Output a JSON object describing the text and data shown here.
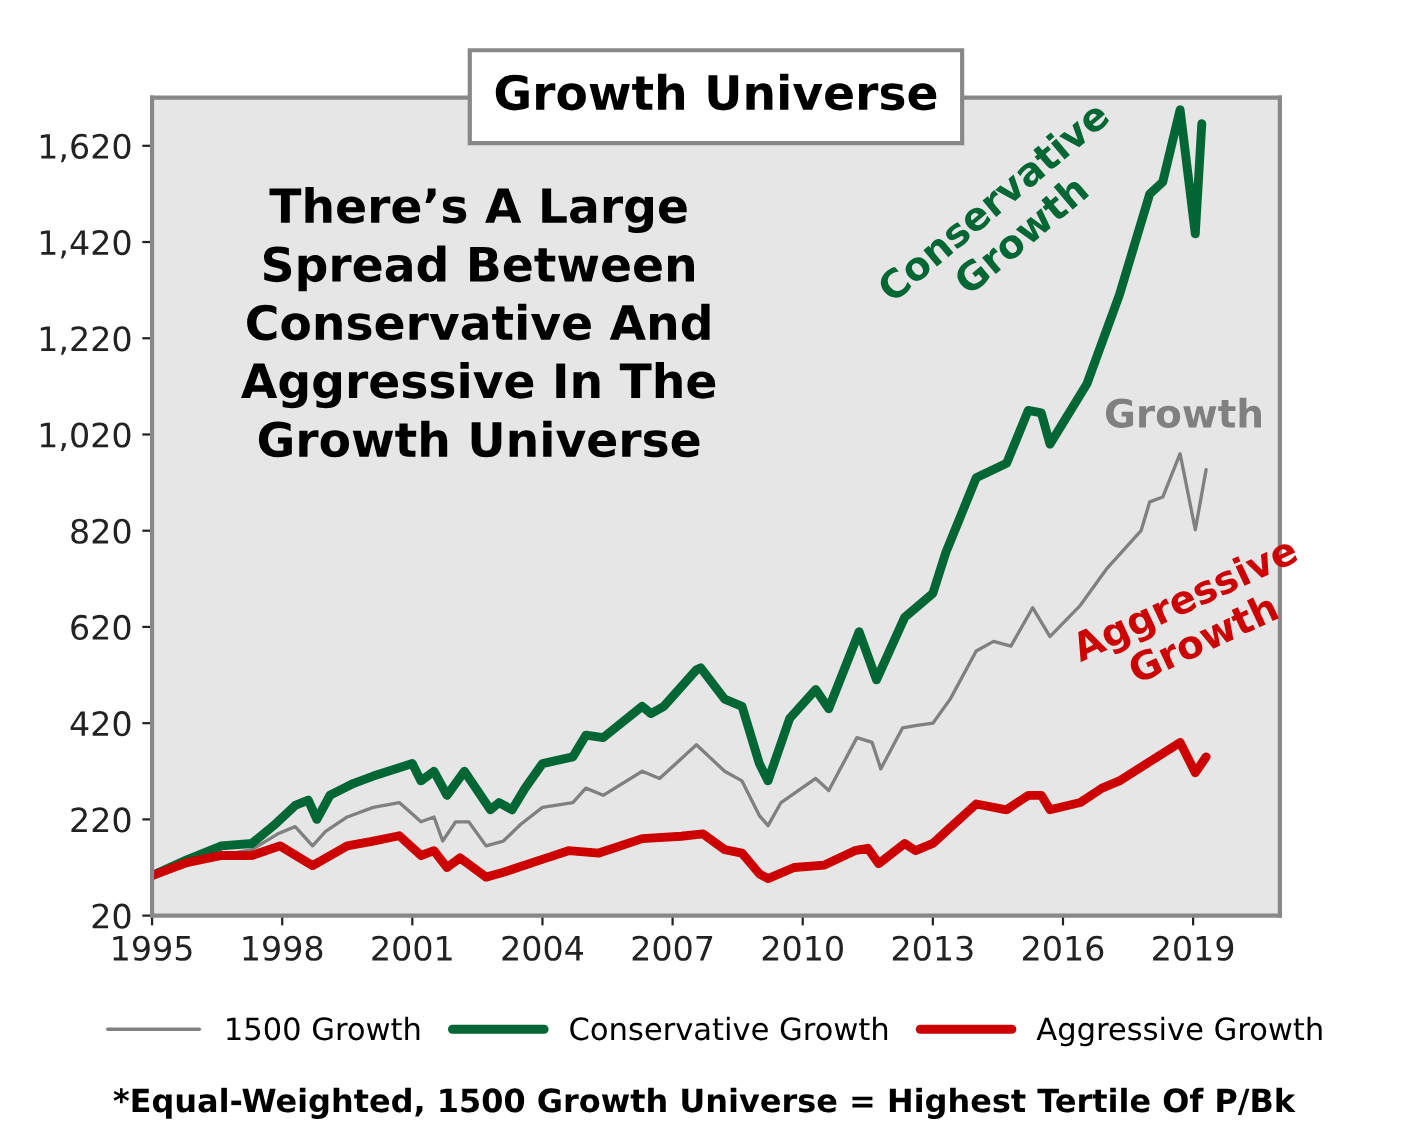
{
  "chart_data": {
    "type": "line",
    "title": "Growth Universe",
    "xlim": [
      1995,
      2021
    ],
    "xticks": [
      1995,
      1998,
      2001,
      2004,
      2007,
      2010,
      2013,
      2016,
      2019
    ],
    "ylim": [
      20,
      1720
    ],
    "yticks": [
      20,
      220,
      420,
      620,
      820,
      {
        "value": 1020,
        "label": "1,020"
      },
      {
        "value": 1220,
        "label": "1,220"
      },
      {
        "value": 1420,
        "label": "1,420"
      },
      {
        "value": 1620,
        "label": "1,620"
      }
    ],
    "grid": false,
    "legend": "bottom",
    "line_style": "solid",
    "marker": "none",
    "series": [
      {
        "name": "1500 Growth",
        "color": "#808080",
        "x": [
          1995,
          1996.6,
          1997.3,
          1997.9,
          1998.3,
          1998.7,
          1999.0,
          1999.5,
          2000.1,
          2000.7,
          2001.2,
          2001.5,
          2001.7,
          2002.0,
          2002.3,
          2002.7,
          2003.1,
          2003.5,
          2004.0,
          2004.7,
          2005.0,
          2005.4,
          2006.3,
          2006.7,
          2007.55,
          2008.2,
          2008.6,
          2009.0,
          2009.2,
          2009.5,
          2010.3,
          2010.6,
          2011.25,
          2011.6,
          2011.8,
          2012.3,
          2012.6,
          2013.0,
          2013.4,
          2014.0,
          2014.4,
          2014.8,
          2015.3,
          2015.7,
          2016.4,
          2017.0,
          2017.8,
          2018.0,
          2018.3,
          2018.7,
          2019.05,
          2019.3
        ],
        "values": [
          103,
          145,
          157,
          190,
          205,
          165,
          195,
          225,
          245,
          255,
          215,
          225,
          175,
          215,
          215,
          165,
          175,
          210,
          245,
          255,
          285,
          270,
          320,
          305,
          375,
          320,
          300,
          228,
          207,
          255,
          305,
          280,
          390,
          380,
          325,
          410,
          415,
          420,
          470,
          570,
          590,
          580,
          660,
          600,
          665,
          740,
          820,
          880,
          890,
          980,
          822,
          947
        ]
      },
      {
        "name": "Conservative Growth",
        "color": "#006633",
        "x": [
          1995,
          1995.8,
          1996.6,
          1997.3,
          1997.8,
          1998.3,
          1998.6,
          1998.8,
          1999.1,
          1999.65,
          2000.1,
          2001.0,
          2001.2,
          2001.5,
          2001.8,
          2002.2,
          2002.8,
          2003.0,
          2003.3,
          2003.6,
          2004.0,
          2004.7,
          2005.0,
          2005.4,
          2006.3,
          2006.5,
          2006.8,
          2007.55,
          2007.65,
          2008.2,
          2008.6,
          2009.0,
          2009.2,
          2009.7,
          2010.3,
          2010.6,
          2011.3,
          2011.7,
          2012.35,
          2013.0,
          2013.3,
          2014.0,
          2014.7,
          2015.2,
          2015.5,
          2015.7,
          2016.55,
          2017.3,
          2018.0,
          2018.3,
          2018.7,
          2019.05,
          2019.2
        ],
        "values": [
          103,
          136,
          165,
          170,
          207,
          249,
          260,
          220,
          270,
          295,
          310,
          336,
          300,
          320,
          270,
          320,
          240,
          255,
          240,
          285,
          336,
          350,
          395,
          390,
          455,
          440,
          455,
          531,
          535,
          470,
          455,
          336,
          300,
          430,
          490,
          450,
          610,
          510,
          640,
          690,
          775,
          930,
          960,
          1070,
          1065,
          1000,
          1125,
          1310,
          1520,
          1545,
          1695,
          1437,
          1666
        ]
      },
      {
        "name": "Aggressive Growth",
        "color": "#cc0000",
        "x": [
          1995,
          1995.8,
          1996.6,
          1997.3,
          1997.95,
          1998.7,
          1999.5,
          2000.1,
          2000.7,
          2001.2,
          2001.5,
          2001.8,
          2002.1,
          2002.7,
          2003.1,
          2004.1,
          2004.6,
          2005.3,
          2006.3,
          2007.2,
          2007.7,
          2008.2,
          2008.6,
          2009.0,
          2009.2,
          2009.8,
          2010.5,
          2011.2,
          2011.5,
          2011.75,
          2012.35,
          2012.6,
          2013.0,
          2013.3,
          2014.0,
          2014.7,
          2015.2,
          2015.5,
          2015.7,
          2016.4,
          2016.9,
          2017.3,
          2018.7,
          2019.05,
          2019.3
        ],
        "values": [
          103,
          130,
          145,
          145,
          165,
          124,
          165,
          175,
          186,
          145,
          155,
          120,
          140,
          100,
          110,
          140,
          155,
          150,
          180,
          185,
          190,
          157,
          150,
          107,
          97,
          120,
          125,
          155,
          160,
          128,
          170,
          155,
          170,
          195,
          252,
          240,
          270,
          270,
          240,
          255,
          285,
          300,
          380,
          317,
          350
        ]
      }
    ],
    "annotations": [
      "There’s A Large\nSpread Between\nConservative And\nAggressive In The\nGrowth Universe",
      "Conservative\nGrowth",
      "Growth",
      "Aggressive\nGrowth",
      "*Equal-Weighted, 1500 Growth Universe = Highest Tertile Of P/Bk"
    ]
  }
}
